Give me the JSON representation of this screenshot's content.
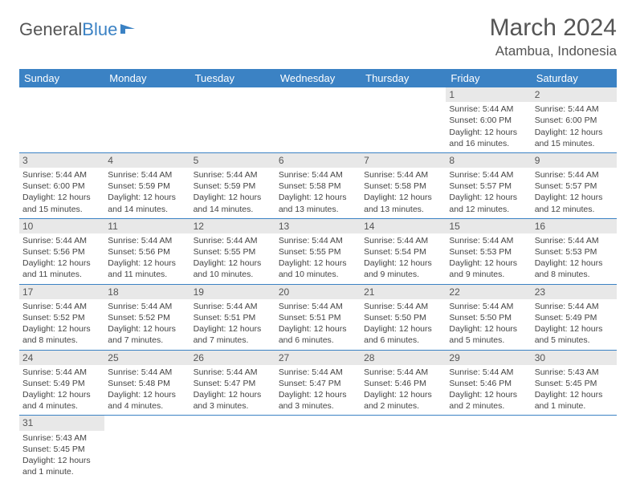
{
  "logo": {
    "text1": "General",
    "text2": "Blue"
  },
  "title": "March 2024",
  "location": "Atambua, Indonesia",
  "colors": {
    "header_bg": "#3b82c4",
    "header_fg": "#ffffff",
    "daynum_bg": "#e8e8e8",
    "border": "#3b82c4",
    "text": "#444444",
    "title_color": "#555555"
  },
  "weekdays": [
    "Sunday",
    "Monday",
    "Tuesday",
    "Wednesday",
    "Thursday",
    "Friday",
    "Saturday"
  ],
  "labels": {
    "sunrise": "Sunrise",
    "sunset": "Sunset",
    "daylight": "Daylight"
  },
  "weeks": [
    [
      null,
      null,
      null,
      null,
      null,
      {
        "n": "1",
        "sr": "5:44 AM",
        "ss": "6:00 PM",
        "dl": "12 hours and 16 minutes."
      },
      {
        "n": "2",
        "sr": "5:44 AM",
        "ss": "6:00 PM",
        "dl": "12 hours and 15 minutes."
      }
    ],
    [
      {
        "n": "3",
        "sr": "5:44 AM",
        "ss": "6:00 PM",
        "dl": "12 hours and 15 minutes."
      },
      {
        "n": "4",
        "sr": "5:44 AM",
        "ss": "5:59 PM",
        "dl": "12 hours and 14 minutes."
      },
      {
        "n": "5",
        "sr": "5:44 AM",
        "ss": "5:59 PM",
        "dl": "12 hours and 14 minutes."
      },
      {
        "n": "6",
        "sr": "5:44 AM",
        "ss": "5:58 PM",
        "dl": "12 hours and 13 minutes."
      },
      {
        "n": "7",
        "sr": "5:44 AM",
        "ss": "5:58 PM",
        "dl": "12 hours and 13 minutes."
      },
      {
        "n": "8",
        "sr": "5:44 AM",
        "ss": "5:57 PM",
        "dl": "12 hours and 12 minutes."
      },
      {
        "n": "9",
        "sr": "5:44 AM",
        "ss": "5:57 PM",
        "dl": "12 hours and 12 minutes."
      }
    ],
    [
      {
        "n": "10",
        "sr": "5:44 AM",
        "ss": "5:56 PM",
        "dl": "12 hours and 11 minutes."
      },
      {
        "n": "11",
        "sr": "5:44 AM",
        "ss": "5:56 PM",
        "dl": "12 hours and 11 minutes."
      },
      {
        "n": "12",
        "sr": "5:44 AM",
        "ss": "5:55 PM",
        "dl": "12 hours and 10 minutes."
      },
      {
        "n": "13",
        "sr": "5:44 AM",
        "ss": "5:55 PM",
        "dl": "12 hours and 10 minutes."
      },
      {
        "n": "14",
        "sr": "5:44 AM",
        "ss": "5:54 PM",
        "dl": "12 hours and 9 minutes."
      },
      {
        "n": "15",
        "sr": "5:44 AM",
        "ss": "5:53 PM",
        "dl": "12 hours and 9 minutes."
      },
      {
        "n": "16",
        "sr": "5:44 AM",
        "ss": "5:53 PM",
        "dl": "12 hours and 8 minutes."
      }
    ],
    [
      {
        "n": "17",
        "sr": "5:44 AM",
        "ss": "5:52 PM",
        "dl": "12 hours and 8 minutes."
      },
      {
        "n": "18",
        "sr": "5:44 AM",
        "ss": "5:52 PM",
        "dl": "12 hours and 7 minutes."
      },
      {
        "n": "19",
        "sr": "5:44 AM",
        "ss": "5:51 PM",
        "dl": "12 hours and 7 minutes."
      },
      {
        "n": "20",
        "sr": "5:44 AM",
        "ss": "5:51 PM",
        "dl": "12 hours and 6 minutes."
      },
      {
        "n": "21",
        "sr": "5:44 AM",
        "ss": "5:50 PM",
        "dl": "12 hours and 6 minutes."
      },
      {
        "n": "22",
        "sr": "5:44 AM",
        "ss": "5:50 PM",
        "dl": "12 hours and 5 minutes."
      },
      {
        "n": "23",
        "sr": "5:44 AM",
        "ss": "5:49 PM",
        "dl": "12 hours and 5 minutes."
      }
    ],
    [
      {
        "n": "24",
        "sr": "5:44 AM",
        "ss": "5:49 PM",
        "dl": "12 hours and 4 minutes."
      },
      {
        "n": "25",
        "sr": "5:44 AM",
        "ss": "5:48 PM",
        "dl": "12 hours and 4 minutes."
      },
      {
        "n": "26",
        "sr": "5:44 AM",
        "ss": "5:47 PM",
        "dl": "12 hours and 3 minutes."
      },
      {
        "n": "27",
        "sr": "5:44 AM",
        "ss": "5:47 PM",
        "dl": "12 hours and 3 minutes."
      },
      {
        "n": "28",
        "sr": "5:44 AM",
        "ss": "5:46 PM",
        "dl": "12 hours and 2 minutes."
      },
      {
        "n": "29",
        "sr": "5:44 AM",
        "ss": "5:46 PM",
        "dl": "12 hours and 2 minutes."
      },
      {
        "n": "30",
        "sr": "5:43 AM",
        "ss": "5:45 PM",
        "dl": "12 hours and 1 minute."
      }
    ],
    [
      {
        "n": "31",
        "sr": "5:43 AM",
        "ss": "5:45 PM",
        "dl": "12 hours and 1 minute."
      },
      null,
      null,
      null,
      null,
      null,
      null
    ]
  ]
}
